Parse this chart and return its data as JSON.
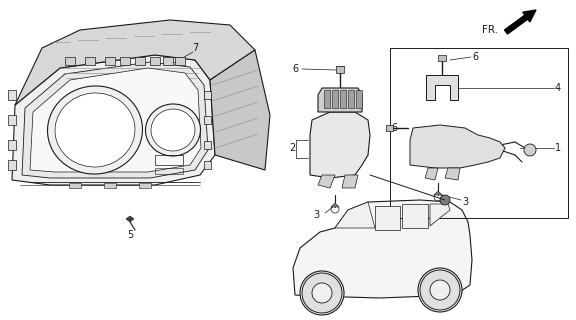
{
  "bg_color": "#ffffff",
  "line_color": "#1a1a1a",
  "gray_color": "#888888",
  "figsize": [
    5.76,
    3.2
  ],
  "dpi": 100
}
